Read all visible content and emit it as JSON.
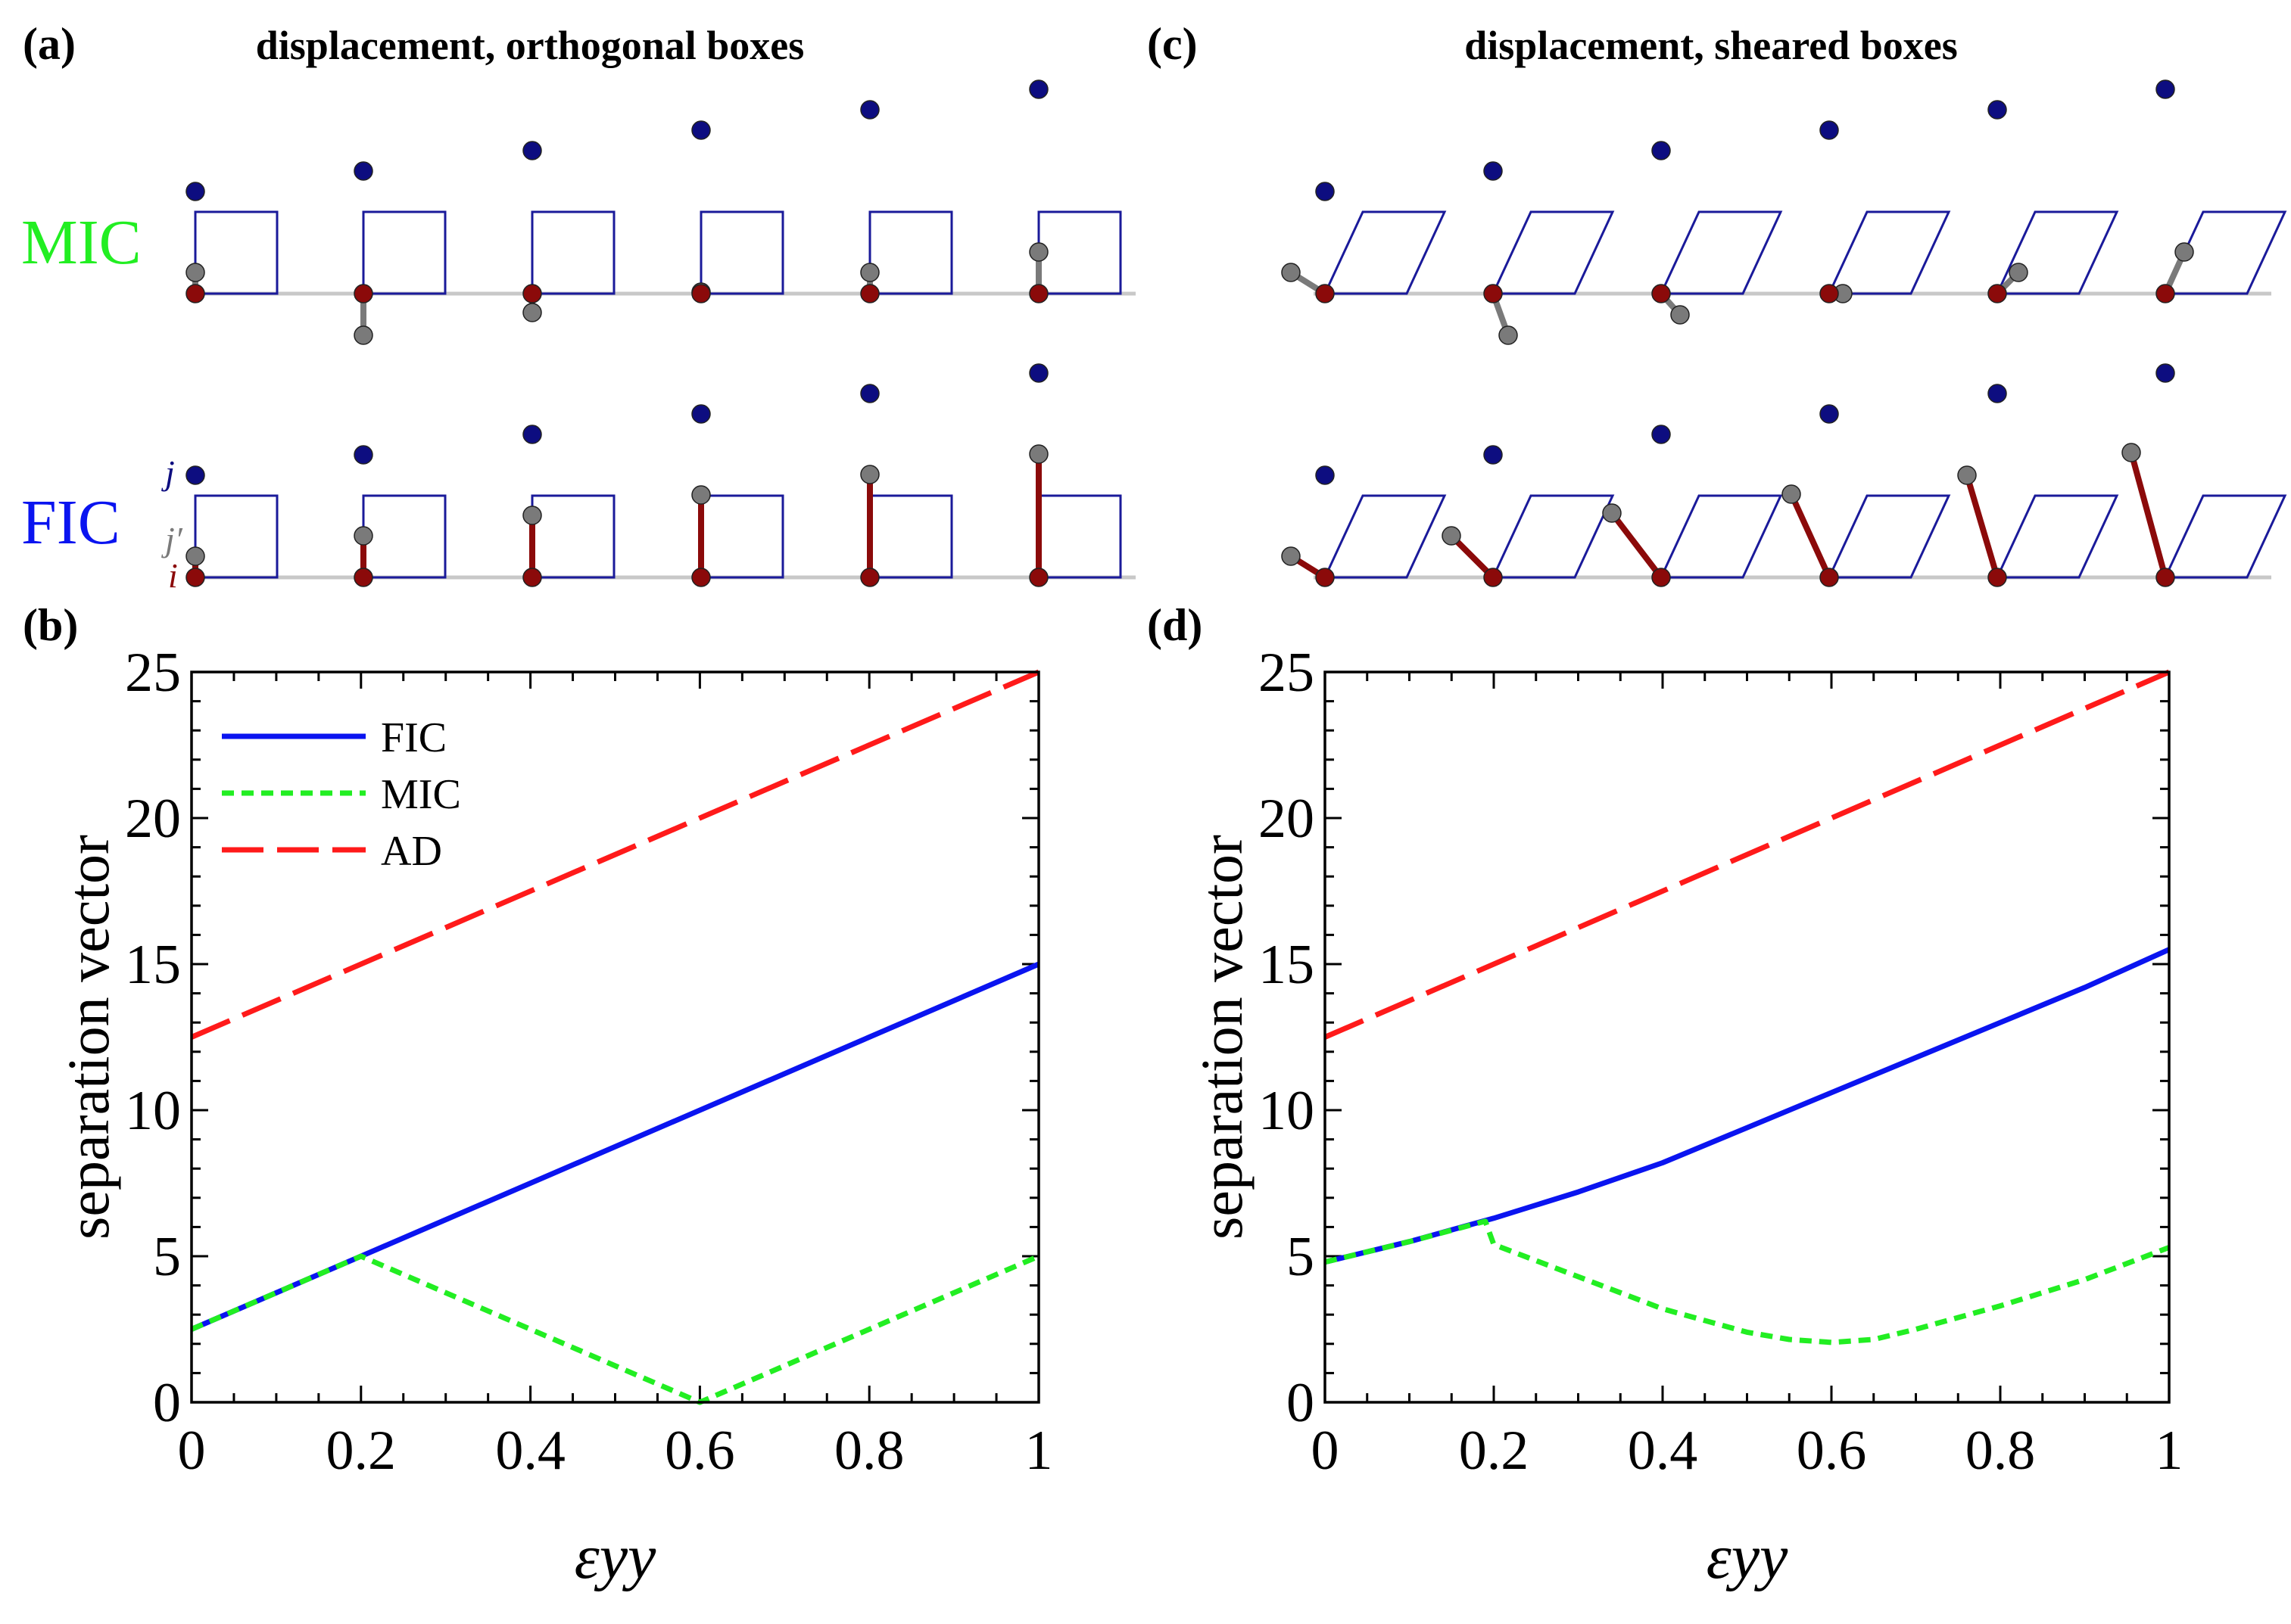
{
  "colors": {
    "fic": "#0a14f0",
    "mic": "#22ee22",
    "ad": "#ff1a1a",
    "box": "#1a1a9a",
    "atom_i": "#8b0a0a",
    "atom_j": "#0d0d80",
    "atom_jprime": "#7a7a7a",
    "baseline": "#c8c8c8"
  },
  "panels": {
    "a": {
      "label": "(a)",
      "title": "displacement, orthogonal boxes"
    },
    "b": {
      "label": "(b)"
    },
    "c": {
      "label": "(c)",
      "title": "displacement, sheared boxes"
    },
    "d": {
      "label": "(d)"
    }
  },
  "rows": {
    "mic": "MIC",
    "fic": "FIC"
  },
  "atoms": {
    "j": "j",
    "jprime": "j′",
    "i": "i"
  },
  "chart_data": [
    {
      "id": "b",
      "type": "line",
      "title": "",
      "xlabel": "εyy",
      "ylabel": "separation vector",
      "xlim": [
        0,
        1
      ],
      "ylim": [
        0,
        25
      ],
      "xticks": [
        "0",
        "0.2",
        "0.4",
        "0.6",
        "0.8",
        "1"
      ],
      "yticks": [
        "0",
        "5",
        "10",
        "15",
        "20",
        "25"
      ],
      "legend": {
        "position": "top-left"
      },
      "series": [
        {
          "name": "FIC",
          "style": "solid",
          "x": [
            0,
            1
          ],
          "y": [
            2.5,
            15
          ]
        },
        {
          "name": "MIC",
          "style": "dotted",
          "x": [
            0,
            0.2,
            0.6,
            1
          ],
          "y": [
            2.5,
            5,
            0,
            5
          ]
        },
        {
          "name": "AD",
          "style": "dashed",
          "x": [
            0,
            1
          ],
          "y": [
            12.5,
            25
          ]
        }
      ]
    },
    {
      "id": "d",
      "type": "line",
      "title": "",
      "xlabel": "εyy",
      "ylabel": "separation vector",
      "xlim": [
        0,
        1
      ],
      "ylim": [
        0,
        25
      ],
      "xticks": [
        "0",
        "0.2",
        "0.4",
        "0.6",
        "0.8",
        "1"
      ],
      "yticks": [
        "0",
        "5",
        "10",
        "15",
        "20",
        "25"
      ],
      "series": [
        {
          "name": "FIC",
          "style": "solid",
          "x": [
            0,
            0.1,
            0.2,
            0.3,
            0.4,
            0.5,
            0.6,
            0.7,
            0.8,
            0.9,
            1.0
          ],
          "y": [
            4.8,
            5.5,
            6.3,
            7.2,
            8.2,
            9.4,
            10.6,
            11.8,
            13.0,
            14.2,
            15.5
          ]
        },
        {
          "name": "MIC",
          "style": "dotted",
          "x": [
            0,
            0.1,
            0.19,
            0.2,
            0.3,
            0.4,
            0.5,
            0.55,
            0.6,
            0.65,
            0.7,
            0.8,
            0.9,
            1.0
          ],
          "y": [
            4.8,
            5.5,
            6.2,
            5.4,
            4.3,
            3.2,
            2.4,
            2.15,
            2.05,
            2.15,
            2.5,
            3.3,
            4.2,
            5.3
          ]
        },
        {
          "name": "AD",
          "style": "dashed",
          "x": [
            0,
            1
          ],
          "y": [
            12.5,
            25
          ]
        }
      ]
    }
  ]
}
